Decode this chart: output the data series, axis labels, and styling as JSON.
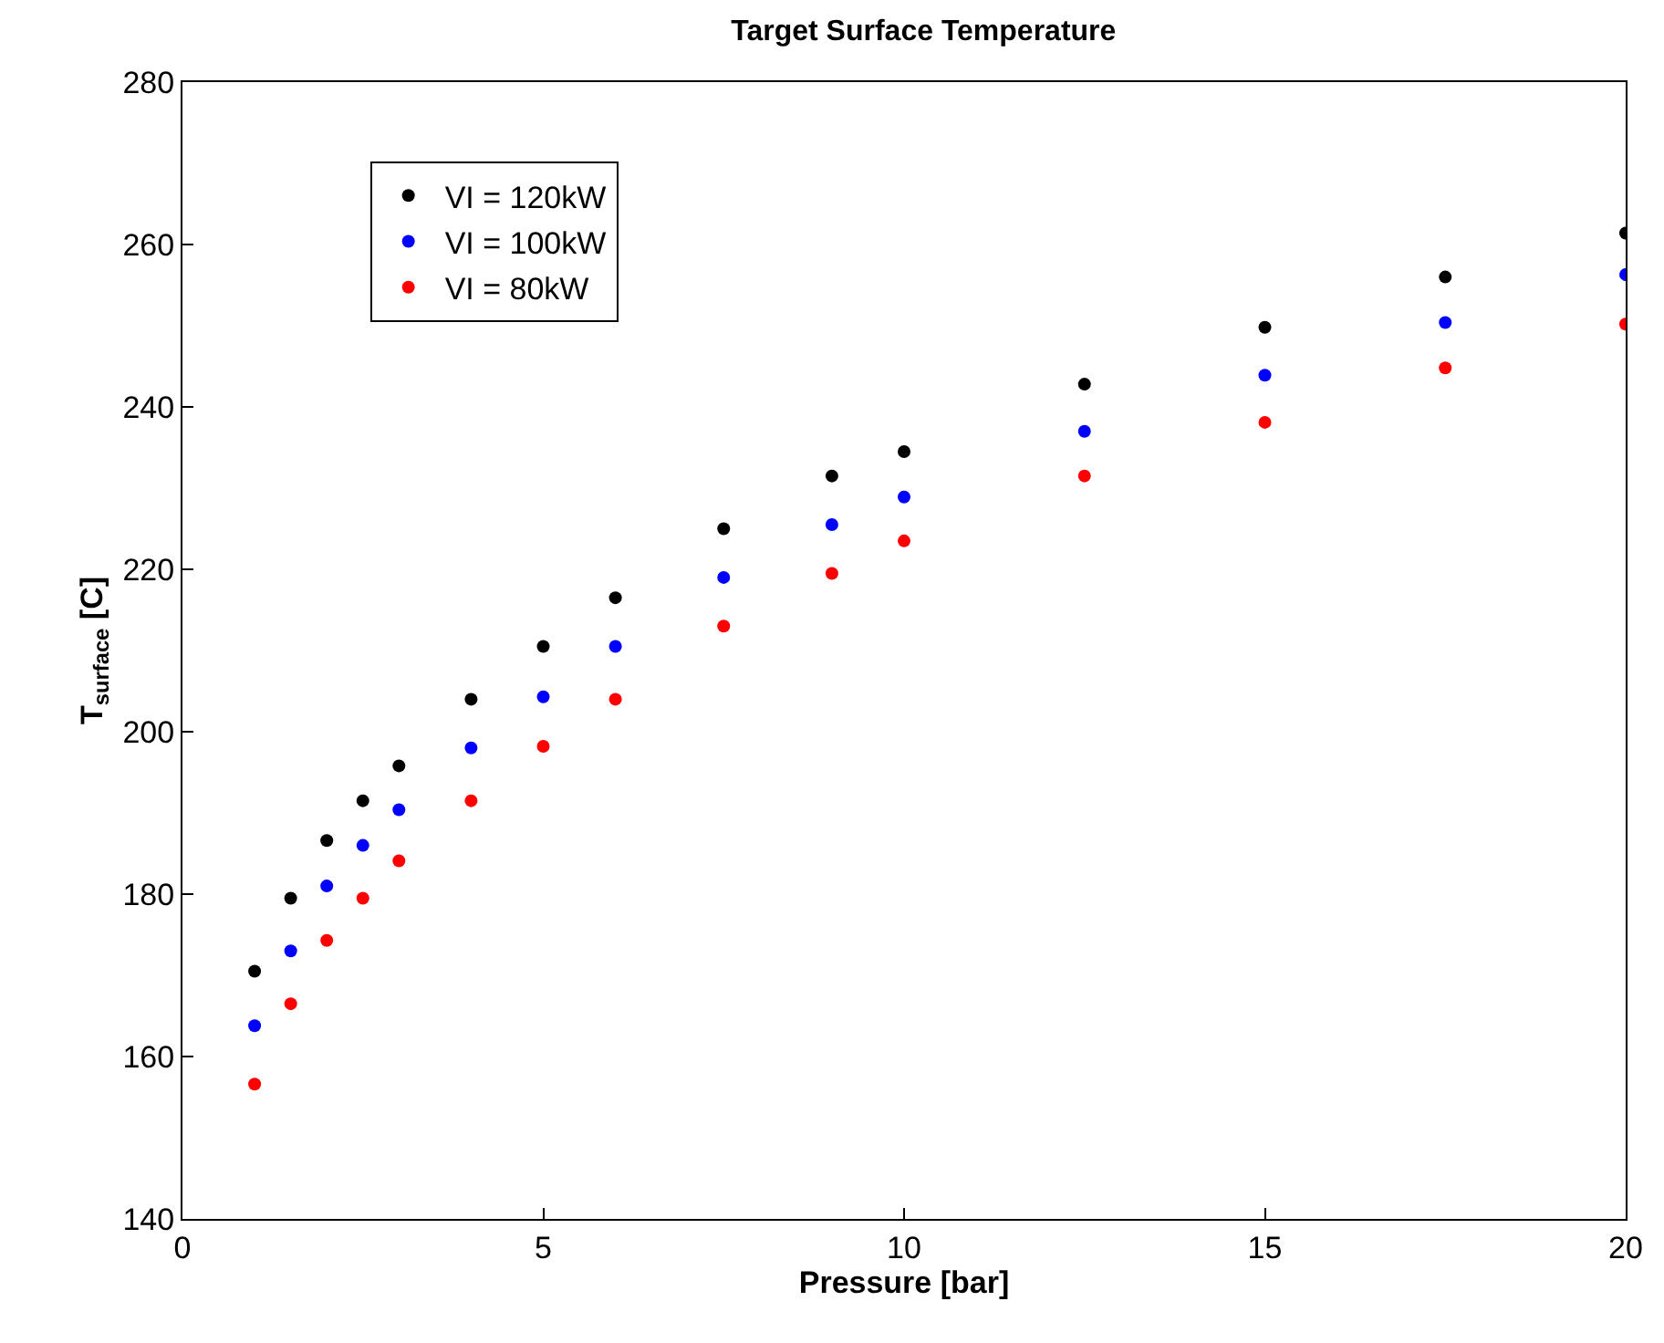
{
  "chart_data": {
    "type": "scatter",
    "title": "Target Surface Temperature",
    "xlabel": "Pressure [bar]",
    "ylabel": "T$_{surface}$ [C]",
    "x": [
      1,
      1.5,
      2,
      2.5,
      3,
      4,
      5,
      6,
      7.5,
      9,
      10,
      12.5,
      15,
      17.5,
      20
    ],
    "series": [
      {
        "name": "VI = 120kW",
        "color": "#000000",
        "values": [
          170.5,
          179.5,
          186.6,
          191.5,
          195.8,
          204,
          210.5,
          216.5,
          225,
          231.5,
          234.5,
          242.8,
          249.8,
          256,
          261.4
        ]
      },
      {
        "name": "VI = 100kW",
        "color": "#0000ff",
        "values": [
          163.8,
          173,
          181,
          186,
          190.4,
          198,
          204.3,
          210.5,
          219,
          225.5,
          228.9,
          237,
          243.9,
          250.4,
          256.3
        ]
      },
      {
        "name": "VI = 80kW",
        "color": "#ff0000",
        "values": [
          156.6,
          166.5,
          174.3,
          179.5,
          184.1,
          191.5,
          198.2,
          204,
          213,
          219.5,
          223.5,
          231.5,
          238.1,
          244.8,
          250.2
        ]
      }
    ],
    "xlim": [
      0,
      20
    ],
    "xticks": [
      0,
      5,
      10,
      15,
      20
    ],
    "ylim": [
      140,
      280
    ],
    "yticks": [
      140,
      160,
      180,
      200,
      220,
      240,
      260,
      280
    ],
    "marker": "circle",
    "legend": "top left"
  }
}
